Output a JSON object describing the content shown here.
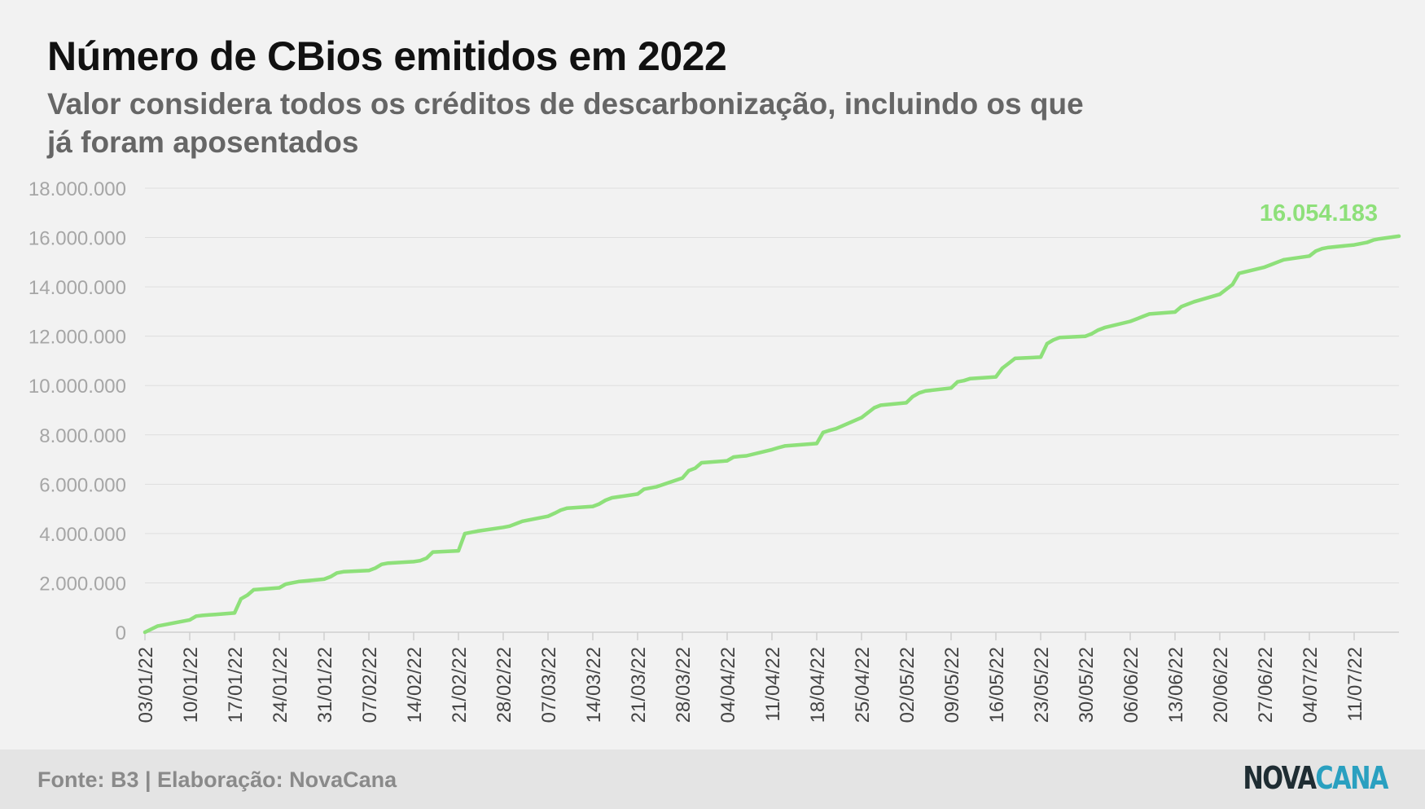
{
  "header": {
    "title": "Número de CBios emitidos em 2022",
    "subtitle": "Valor considera todos os créditos de descarbonização, incluindo os que já foram aposentados"
  },
  "footer": {
    "source": "Fonte: B3 | Elaboração: NovaCana",
    "logo_part1": "NOVA",
    "logo_part2": "CANA"
  },
  "colors": {
    "line": "#8ee07a",
    "last_label": "#8ee07a",
    "logo_dark": "#1f2d33",
    "logo_accent": "#2aa0c0"
  },
  "chart_data": {
    "type": "line",
    "title": "",
    "xlabel": "",
    "ylabel": "",
    "ylim": [
      0,
      18000000
    ],
    "y_ticks": [
      0,
      2000000,
      4000000,
      6000000,
      8000000,
      10000000,
      12000000,
      14000000,
      16000000,
      18000000
    ],
    "y_tick_labels": [
      "0",
      "2.000.000",
      "4.000.000",
      "6.000.000",
      "8.000.000",
      "10.000.000",
      "12.000.000",
      "14.000.000",
      "16.000.000",
      "18.000.000"
    ],
    "x_tick_labels": [
      "03/01/22",
      "10/01/22",
      "17/01/22",
      "24/01/22",
      "31/01/22",
      "07/02/22",
      "14/02/22",
      "21/02/22",
      "28/02/22",
      "07/03/22",
      "14/03/22",
      "21/03/22",
      "28/03/22",
      "04/04/22",
      "11/04/22",
      "18/04/22",
      "25/04/22",
      "02/05/22",
      "09/05/22",
      "16/05/22",
      "23/05/22",
      "30/05/22",
      "06/06/22",
      "13/06/22",
      "20/06/22",
      "27/06/22",
      "04/07/22",
      "11/07/22"
    ],
    "x_range": [
      "03/01/22",
      "18/07/22"
    ],
    "grid": true,
    "legend": "none",
    "last_value_label": "16.054.183",
    "series": [
      {
        "x": [
          "03/01/22",
          "05/01/22",
          "06/01/22",
          "10/01/22",
          "11/01/22",
          "12/01/22",
          "13/01/22",
          "14/01/22",
          "17/01/22",
          "18/01/22",
          "19/01/22",
          "20/01/22",
          "24/01/22",
          "25/01/22",
          "26/01/22",
          "27/01/22",
          "31/01/22",
          "01/02/22",
          "02/02/22",
          "03/02/22",
          "07/02/22",
          "08/02/22",
          "09/02/22",
          "10/02/22",
          "14/02/22",
          "15/02/22",
          "16/02/22",
          "17/02/22",
          "21/02/22",
          "22/02/22",
          "24/02/22",
          "28/02/22",
          "01/03/22",
          "03/03/22",
          "07/03/22",
          "08/03/22",
          "09/03/22",
          "10/03/22",
          "14/03/22",
          "15/03/22",
          "16/03/22",
          "17/03/22",
          "21/03/22",
          "22/03/22",
          "23/03/22",
          "24/03/22",
          "28/03/22",
          "29/03/22",
          "30/03/22",
          "31/03/22",
          "04/04/22",
          "05/04/22",
          "06/04/22",
          "07/04/22",
          "11/04/22",
          "12/04/22",
          "13/04/22",
          "18/04/22",
          "19/04/22",
          "20/04/22",
          "21/04/22",
          "25/04/22",
          "26/04/22",
          "27/04/22",
          "28/04/22",
          "02/05/22",
          "03/05/22",
          "04/05/22",
          "05/05/22",
          "09/05/22",
          "10/05/22",
          "11/05/22",
          "12/05/22",
          "16/05/22",
          "17/05/22",
          "18/05/22",
          "19/05/22",
          "23/05/22",
          "24/05/22",
          "25/05/22",
          "26/05/22",
          "30/05/22",
          "31/05/22",
          "01/06/22",
          "02/06/22",
          "06/06/22",
          "07/06/22",
          "08/06/22",
          "09/06/22",
          "13/06/22",
          "14/06/22",
          "15/06/22",
          "16/06/22",
          "20/06/22",
          "21/06/22",
          "22/06/22",
          "23/06/22",
          "27/06/22",
          "28/06/22",
          "29/06/22",
          "30/06/22",
          "04/07/22",
          "05/07/22",
          "06/07/22",
          "07/07/22",
          "11/07/22",
          "12/07/22",
          "13/07/22",
          "14/07/22",
          "15/07/22",
          "18/07/22"
        ],
        "values": [
          0,
          250000,
          300000,
          500000,
          650000,
          680000,
          700000,
          720000,
          780000,
          1350000,
          1500000,
          1720000,
          1800000,
          1950000,
          2000000,
          2050000,
          2150000,
          2250000,
          2400000,
          2450000,
          2500000,
          2600000,
          2750000,
          2800000,
          2860000,
          2900000,
          3000000,
          3250000,
          3300000,
          4000000,
          4100000,
          4250000,
          4300000,
          4500000,
          4700000,
          4820000,
          4950000,
          5030000,
          5100000,
          5200000,
          5350000,
          5450000,
          5600000,
          5800000,
          5850000,
          5900000,
          6250000,
          6550000,
          6650000,
          6870000,
          6950000,
          7100000,
          7130000,
          7150000,
          7400000,
          7480000,
          7550000,
          7650000,
          8100000,
          8180000,
          8250000,
          8700000,
          8900000,
          9100000,
          9200000,
          9300000,
          9550000,
          9700000,
          9780000,
          9900000,
          10150000,
          10200000,
          10280000,
          10350000,
          10700000,
          10900000,
          11100000,
          11150000,
          11700000,
          11850000,
          11950000,
          12000000,
          12100000,
          12250000,
          12350000,
          12600000,
          12700000,
          12800000,
          12900000,
          12980000,
          13200000,
          13300000,
          13400000,
          13700000,
          13900000,
          14100000,
          14550000,
          14800000,
          14900000,
          15000000,
          15100000,
          15250000,
          15450000,
          15550000,
          15600000,
          15700000,
          15750000,
          15800000,
          15900000,
          15950000,
          16054183
        ]
      }
    ]
  }
}
